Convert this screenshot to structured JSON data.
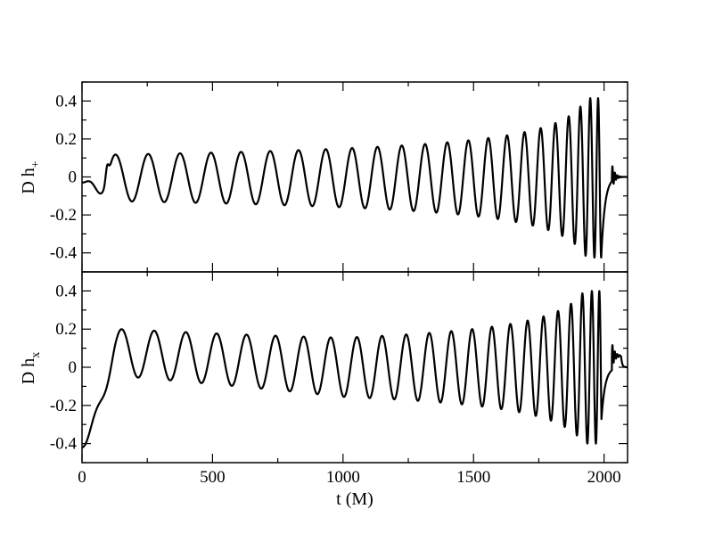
{
  "chart_data": [
    {
      "type": "line",
      "ylabel": "D h",
      "ylabel_sub": "+",
      "xlim": [
        0,
        2090
      ],
      "ylim": [
        -0.5,
        0.5
      ],
      "yticks": [
        -0.4,
        -0.2,
        0,
        0.2,
        0.4
      ],
      "ytick_labels": [
        "-0.4",
        "-0.2",
        "0",
        "0.2",
        "0.4"
      ],
      "grid": false,
      "series": [
        {
          "color": "#000000",
          "waveform": {
            "t_start": 0,
            "t_merger": 1990,
            "t_end": 2090,
            "junk_end_t": 90,
            "junk_peak": 0.12,
            "early_amplitude": 0.13,
            "merger_amplitude": 0.42,
            "early_period": 130,
            "merger_period": 22,
            "early_offset": -0.005,
            "initial_value": -0.03
          }
        }
      ]
    },
    {
      "type": "line",
      "xlabel": "t (M)",
      "ylabel": "D h",
      "ylabel_sub": "x",
      "xlim": [
        0,
        2090
      ],
      "ylim": [
        -0.5,
        0.5
      ],
      "xticks": [
        0,
        500,
        1000,
        1500,
        2000
      ],
      "xtick_labels": [
        "0",
        "500",
        "1000",
        "1500",
        "2000"
      ],
      "yticks": [
        -0.4,
        -0.2,
        0,
        0.2,
        0.4
      ],
      "ytick_labels": [
        "-0.4",
        "-0.2",
        "0",
        "0.2",
        "0.4"
      ],
      "grid": false,
      "series": [
        {
          "color": "#000000",
          "waveform": {
            "t_start": 0,
            "t_merger": 1990,
            "t_end": 2090,
            "junk_end_t": 100,
            "junk_peak": 0.2,
            "early_amplitude": 0.13,
            "merger_amplitude": 0.4,
            "early_period": 130,
            "merger_period": 22,
            "early_offset_start": 0.09,
            "early_offset_end": 0.0,
            "initial_value": -0.42,
            "ringdown_tail": 0.06
          }
        }
      ]
    }
  ]
}
